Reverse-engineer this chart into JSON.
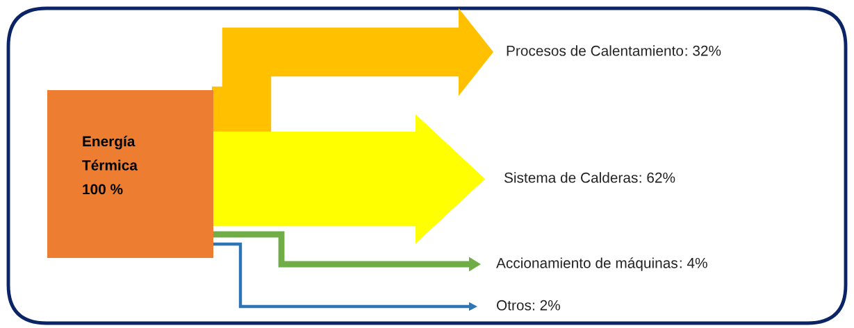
{
  "chart_data": {
    "type": "other",
    "categories": [
      "Procesos de Calentamiento",
      "Sistema de Calderas",
      "Accionamiento de máquinas",
      "Otros"
    ],
    "values": [
      32,
      62,
      4,
      2
    ],
    "value_labels": [
      ": 32%",
      ": 62%",
      ": 4%",
      ": 2%"
    ],
    "colors": [
      "#ffc000",
      "#ffff00",
      "#70ad47",
      "#2e75b6"
    ],
    "annotations": [
      "Energía\nTérmica\n100 %"
    ]
  }
}
